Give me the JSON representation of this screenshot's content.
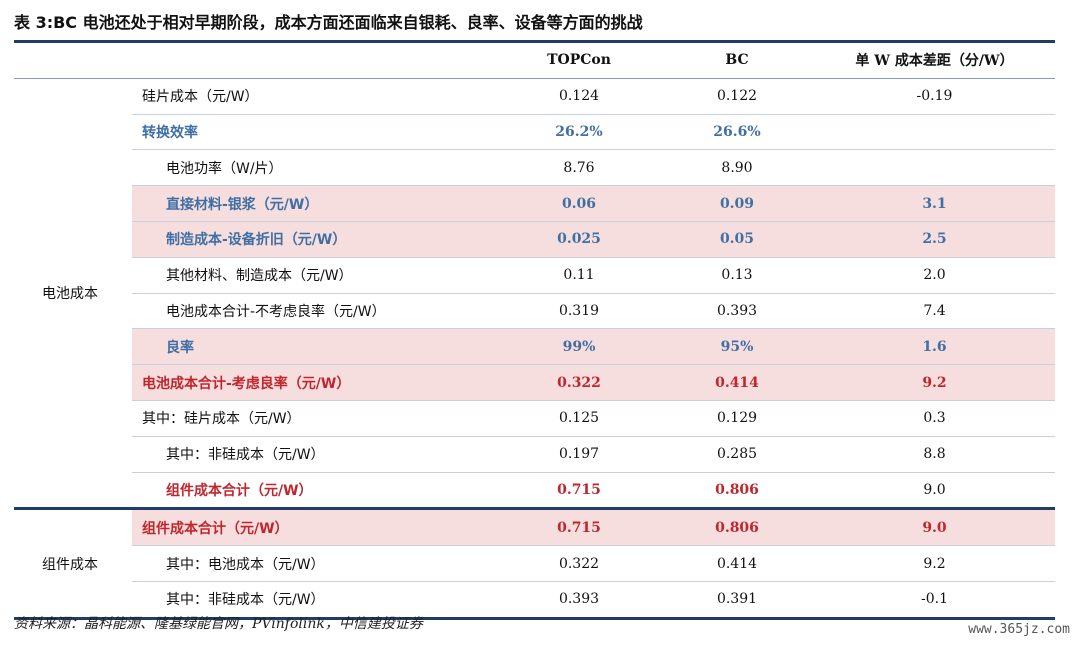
{
  "title": "表 3:BC 电池还处于相对早期阶段，成本方面还面临来自银耗、良率、设备等方面的挑战",
  "columns": [
    "",
    "",
    "TOPCon",
    "BC",
    "单 W 成本差距（分/W）"
  ],
  "groups": {
    "cell": "电池成本",
    "module": "组件成本"
  },
  "rows": [
    {
      "label": "硅片成本（元/W）",
      "topcon": "0.124",
      "bc": "0.122",
      "gap": "-0.19"
    },
    {
      "label": "转换效率",
      "topcon": "26.2%",
      "bc": "26.6%",
      "gap": ""
    },
    {
      "label": "电池功率（W/片）",
      "topcon": "8.76",
      "bc": "8.90",
      "gap": ""
    },
    {
      "label": "直接材料-银浆（元/W）",
      "topcon": "0.06",
      "bc": "0.09",
      "gap": "3.1"
    },
    {
      "label": "制造成本-设备折旧（元/W）",
      "topcon": "0.025",
      "bc": "0.05",
      "gap": "2.5"
    },
    {
      "label": "其他材料、制造成本（元/W）",
      "topcon": "0.11",
      "bc": "0.13",
      "gap": "2.0"
    },
    {
      "label": "电池成本合计-不考虑良率（元/W）",
      "topcon": "0.319",
      "bc": "0.393",
      "gap": "7.4"
    },
    {
      "label": "良率",
      "topcon": "99%",
      "bc": "95%",
      "gap": "1.6"
    },
    {
      "label": "电池成本合计-考虑良率（元/W）",
      "topcon": "0.322",
      "bc": "0.414",
      "gap": "9.2"
    },
    {
      "label": "其中：硅片成本（元/W）",
      "topcon": "0.125",
      "bc": "0.129",
      "gap": "0.3"
    },
    {
      "label": "其中：非硅成本（元/W）",
      "topcon": "0.197",
      "bc": "0.285",
      "gap": "8.8"
    },
    {
      "label": "组件成本合计（元/W）",
      "topcon": "0.715",
      "bc": "0.806",
      "gap": "9.0"
    },
    {
      "label": "组件成本合计（元/W）",
      "topcon": "0.715",
      "bc": "0.806",
      "gap": "9.0"
    },
    {
      "label": "其中：电池成本（元/W）",
      "topcon": "0.322",
      "bc": "0.414",
      "gap": "9.2"
    },
    {
      "label": "其中：非硅成本（元/W）",
      "topcon": "0.393",
      "bc": "0.391",
      "gap": "-0.1"
    }
  ],
  "source": "资料来源：晶科能源、隆基绿能官网，PVinfolink，中信建投证券",
  "watermark": "www.365jz.com",
  "colors": {
    "rule": "#1f3d66",
    "highlight": "#f7dede",
    "blue_text": "#3f6fa5",
    "red_text": "#c0262d"
  }
}
